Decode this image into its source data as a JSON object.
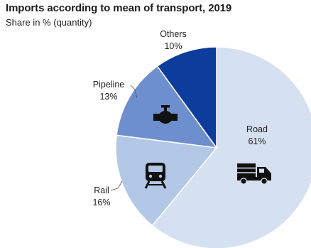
{
  "chart_data": {
    "type": "pie",
    "title": "Imports according to mean of transport, 2019",
    "subtitle": "Share in % (quantity)",
    "slices": [
      {
        "label": "Road",
        "value": 61,
        "value_label": "61%",
        "color": "#d5e0f0",
        "icon": "truck-icon"
      },
      {
        "label": "Rail",
        "value": 16,
        "value_label": "16%",
        "color": "#b3c7e6",
        "icon": "train-icon"
      },
      {
        "label": "Pipeline",
        "value": 13,
        "value_label": "13%",
        "color": "#6e8fce",
        "icon": "valve-icon"
      },
      {
        "label": "Others",
        "value": 10,
        "value_label": "10%",
        "color": "#0c3d9c",
        "icon": null
      }
    ],
    "start": "12 o'clock",
    "direction": "clockwise"
  }
}
